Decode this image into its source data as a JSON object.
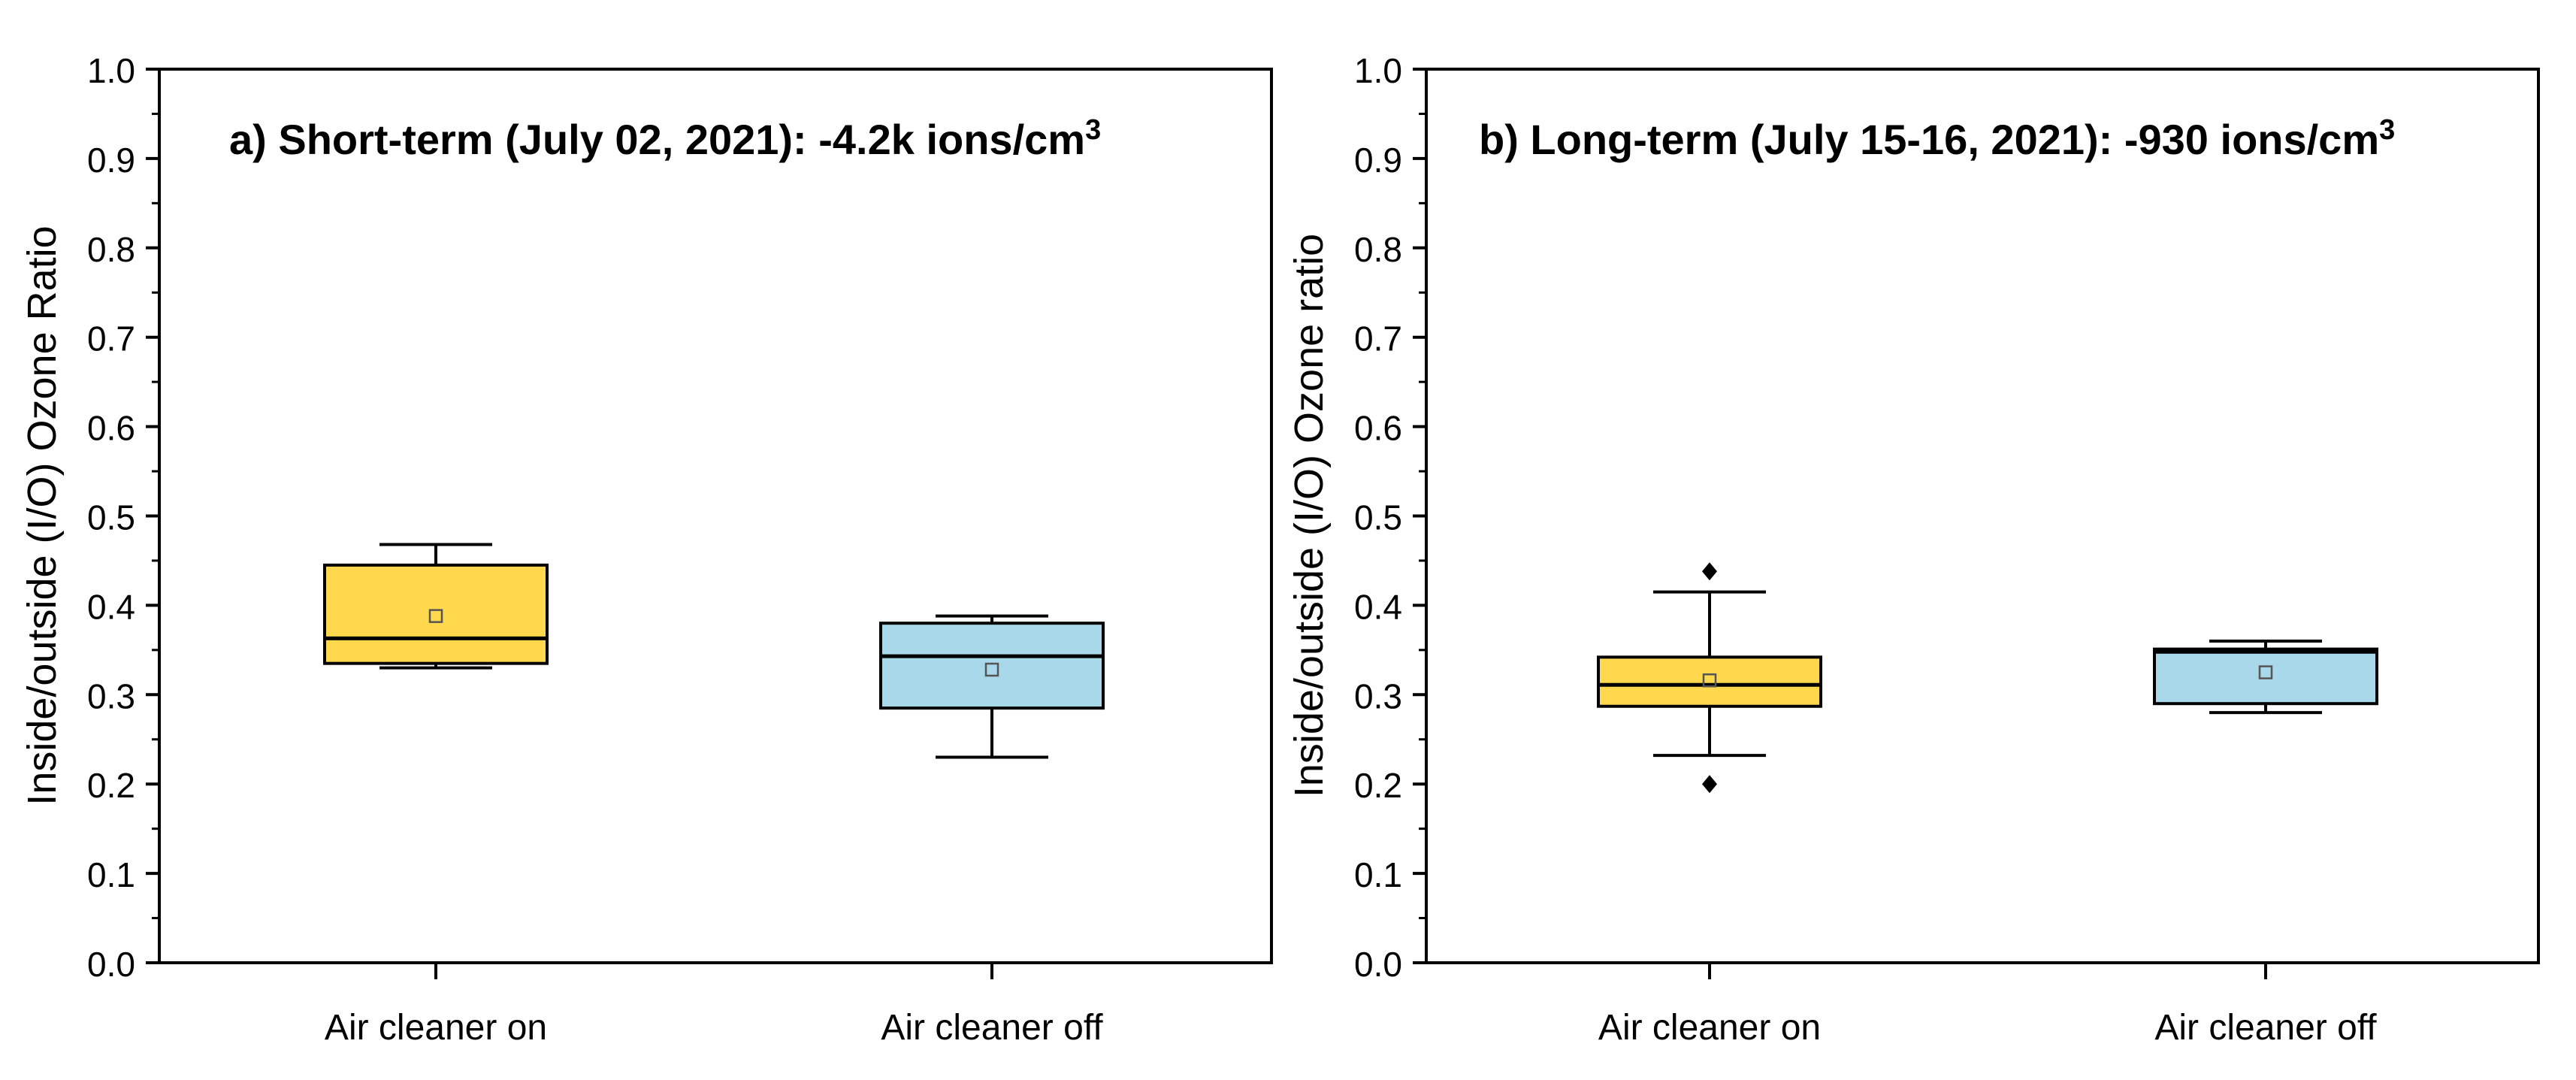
{
  "chart_data": [
    {
      "type": "box",
      "title": "a) Short-term (July 02, 2021): -4.2k ions/cm",
      "title_superscript": "3",
      "ylabel": "Inside/outside (I/O) Ozone Ratio",
      "xlabel": "",
      "ylim": [
        0,
        1.0
      ],
      "yticks": [
        "0.0",
        "0.1",
        "0.2",
        "0.3",
        "0.4",
        "0.5",
        "0.6",
        "0.7",
        "0.8",
        "0.9",
        "1.0"
      ],
      "categories": [
        "Air cleaner on",
        "Air cleaner off"
      ],
      "boxes": [
        {
          "label": "Air cleaner on",
          "color": "#FFD84D",
          "whisker_low": 0.33,
          "q1": 0.335,
          "median": 0.363,
          "q3": 0.445,
          "whisker_high": 0.468,
          "mean": 0.388,
          "outliers": []
        },
        {
          "label": "Air cleaner off",
          "color": "#A8D8EA",
          "whisker_low": 0.23,
          "q1": 0.285,
          "median": 0.343,
          "q3": 0.38,
          "whisker_high": 0.388,
          "mean": 0.328,
          "outliers": []
        }
      ]
    },
    {
      "type": "box",
      "title": "b) Long-term (July 15-16, 2021): -930 ions/cm",
      "title_superscript": "3",
      "ylabel": "Inside/outside (I/O) Ozone ratio",
      "xlabel": "",
      "ylim": [
        0,
        1.0
      ],
      "yticks": [
        "0.0",
        "0.1",
        "0.2",
        "0.3",
        "0.4",
        "0.5",
        "0.6",
        "0.7",
        "0.8",
        "0.9",
        "1.0"
      ],
      "categories": [
        "Air cleaner on",
        "Air cleaner off"
      ],
      "boxes": [
        {
          "label": "Air cleaner on",
          "color": "#FFD84D",
          "whisker_low": 0.232,
          "q1": 0.287,
          "median": 0.311,
          "q3": 0.342,
          "whisker_high": 0.415,
          "mean": 0.316,
          "outliers": [
            0.438,
            0.2
          ]
        },
        {
          "label": "Air cleaner off",
          "color": "#A8D8EA",
          "whisker_low": 0.28,
          "q1": 0.29,
          "median": 0.348,
          "q3": 0.351,
          "whisker_high": 0.36,
          "mean": 0.325,
          "outliers": []
        }
      ]
    }
  ]
}
